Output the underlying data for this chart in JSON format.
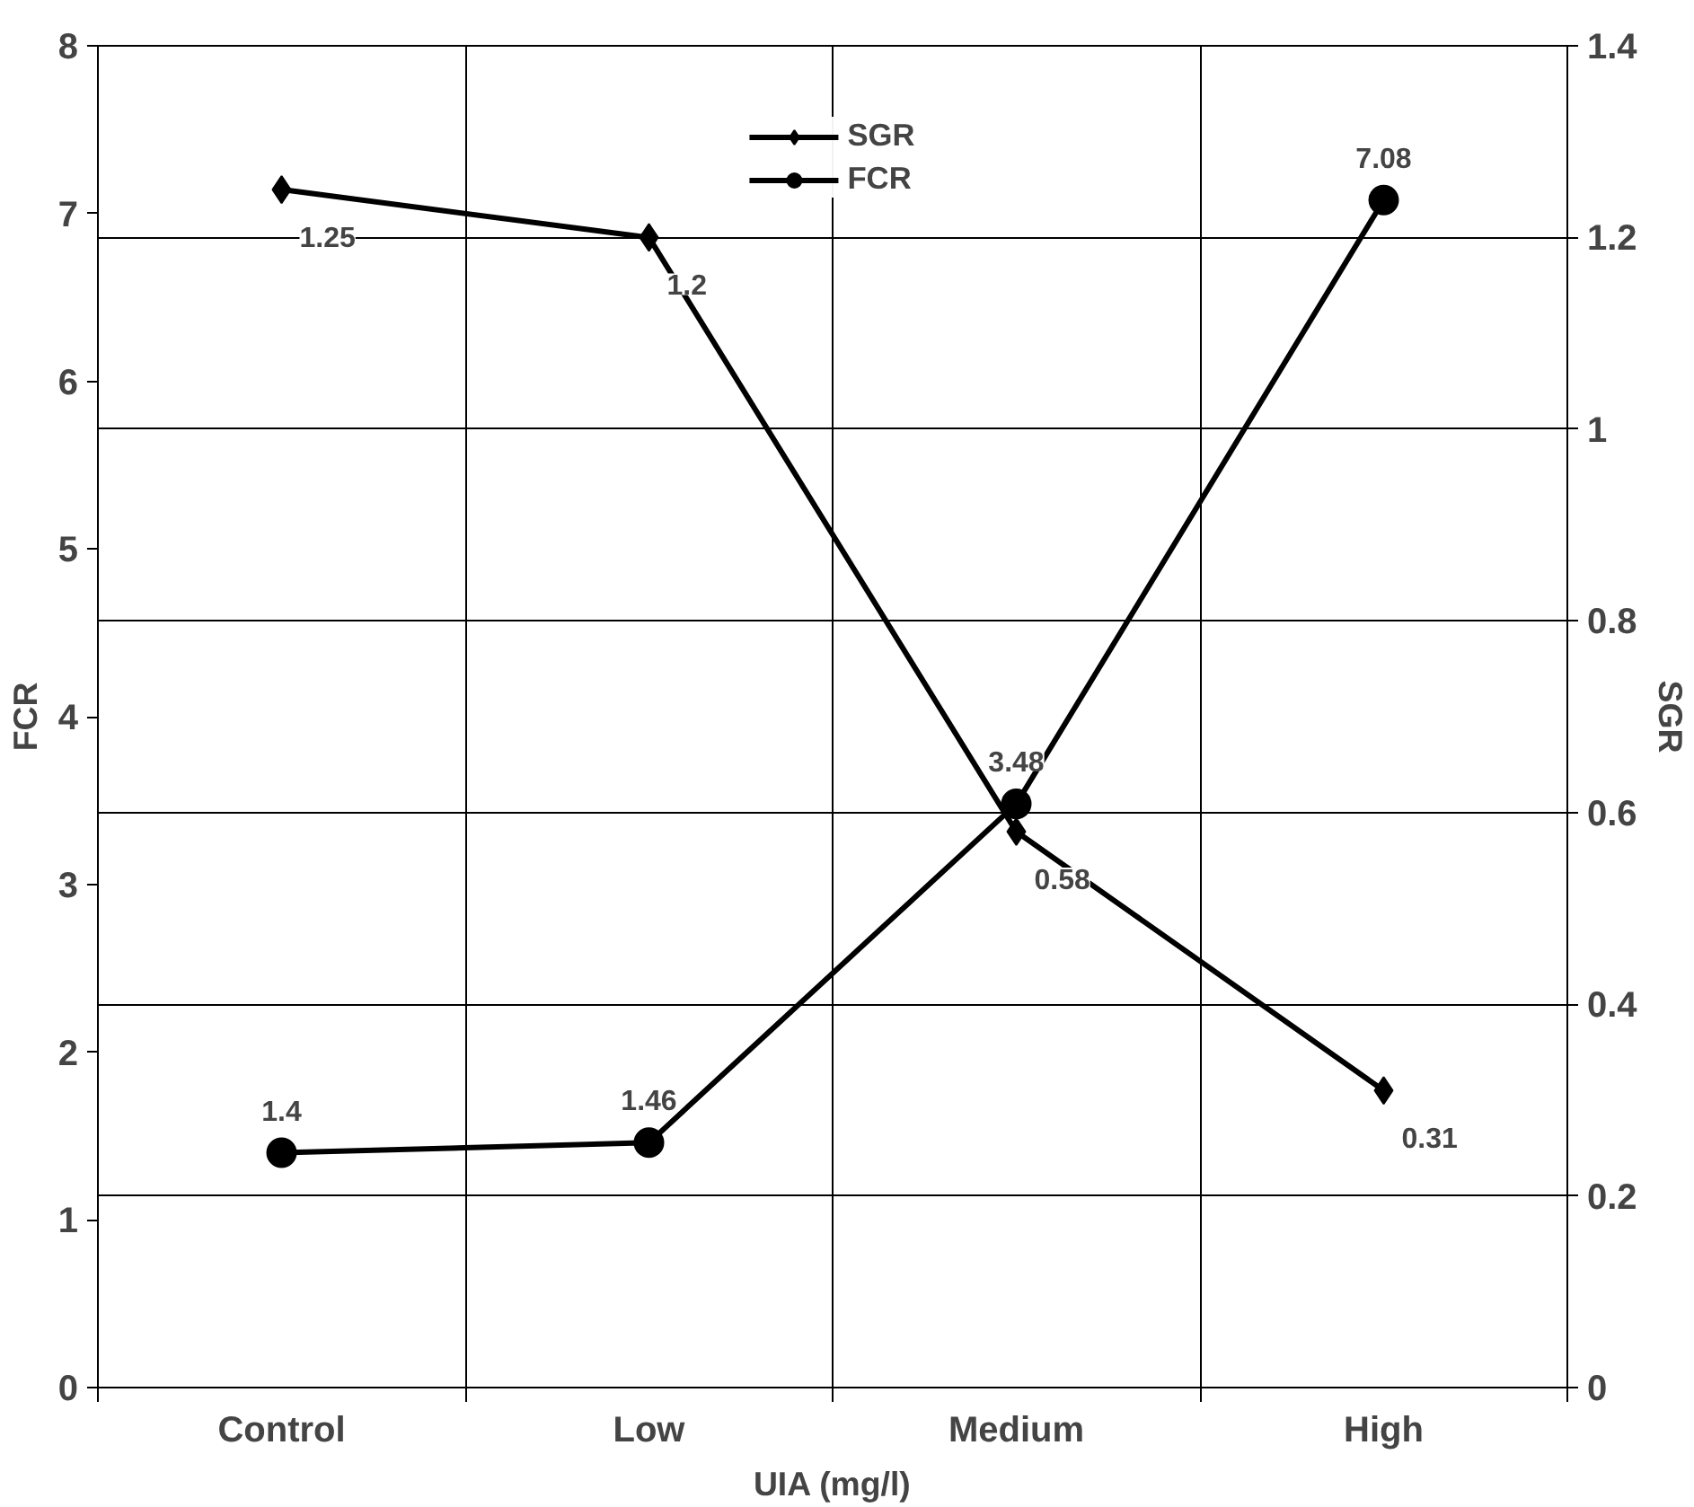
{
  "chart_data": {
    "type": "line",
    "categories": [
      "Control",
      "Low",
      "Medium",
      "High"
    ],
    "xlabel": "UIA (mg/l)",
    "ylabel": "FCR",
    "y2label": "SGR",
    "ylim": [
      0,
      8
    ],
    "yticks": [
      0,
      1,
      2,
      3,
      4,
      5,
      6,
      7,
      8
    ],
    "y2lim": [
      0,
      1.4
    ],
    "y2ticks": [
      0,
      0.2,
      0.4,
      0.6,
      0.8,
      1,
      1.2,
      1.4
    ],
    "grid": true,
    "legend": "top",
    "data_labels": true,
    "series": [
      {
        "name": "SGR",
        "color": "#000000",
        "axis": "y2",
        "marker": "diamond",
        "values": [
          1.25,
          1.2,
          0.58,
          0.31
        ]
      },
      {
        "name": "FCR",
        "color": "#000000",
        "marker": "circle",
        "values": [
          1.4,
          1.46,
          3.48,
          7.08
        ]
      }
    ]
  }
}
